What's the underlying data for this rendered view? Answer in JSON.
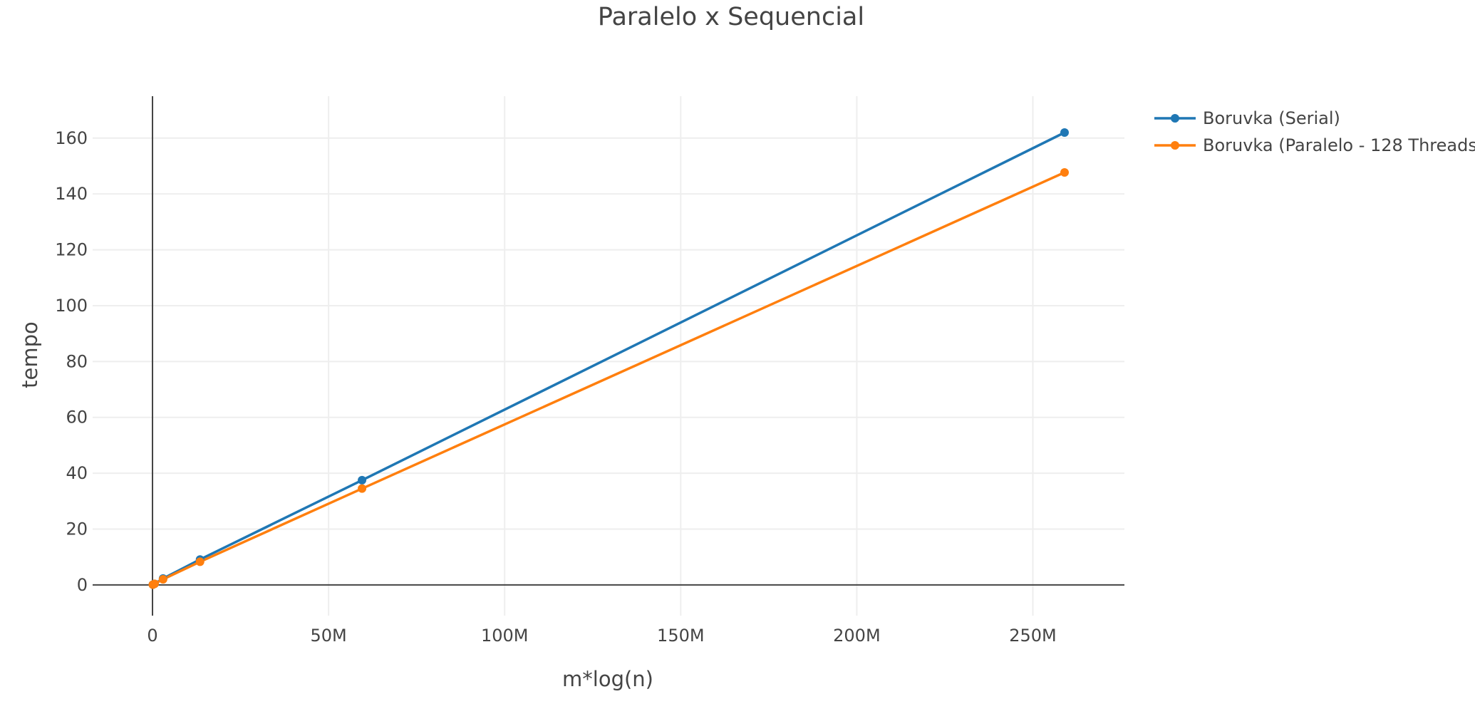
{
  "chart_data": {
    "type": "line",
    "title": "Paralelo x Sequencial",
    "xlabel": "m*log(n)",
    "ylabel": "tempo",
    "xlim": [
      -17000000,
      276000000
    ],
    "ylim": [
      -11,
      175
    ],
    "x_ticks": [
      {
        "value": 0,
        "label": "0"
      },
      {
        "value": 50000000,
        "label": "50M"
      },
      {
        "value": 100000000,
        "label": "100M"
      },
      {
        "value": 150000000,
        "label": "150M"
      },
      {
        "value": 200000000,
        "label": "200M"
      },
      {
        "value": 250000000,
        "label": "250M"
      }
    ],
    "y_ticks": [
      {
        "value": 0,
        "label": "0"
      },
      {
        "value": 20,
        "label": "20"
      },
      {
        "value": 40,
        "label": "40"
      },
      {
        "value": 60,
        "label": "60"
      },
      {
        "value": 80,
        "label": "80"
      },
      {
        "value": 100,
        "label": "100"
      },
      {
        "value": 120,
        "label": "120"
      },
      {
        "value": 140,
        "label": "140"
      },
      {
        "value": 160,
        "label": "160"
      }
    ],
    "grid": true,
    "legend_position": "top-right",
    "series": [
      {
        "name": "Boruvka (Serial)",
        "color": "#1f77b4",
        "x": [
          100000,
          600000,
          3000000,
          13500000,
          59500000,
          259000000
        ],
        "y": [
          0.1,
          0.4,
          2.3,
          9.1,
          37.5,
          162
        ]
      },
      {
        "name": "Boruvka (Paralelo - 128 Threads)",
        "color": "#ff7f0e",
        "x": [
          100000,
          600000,
          3000000,
          13500000,
          59500000,
          259000000
        ],
        "y": [
          0.1,
          0.4,
          2.0,
          8.3,
          34.5,
          147.7
        ]
      }
    ]
  }
}
